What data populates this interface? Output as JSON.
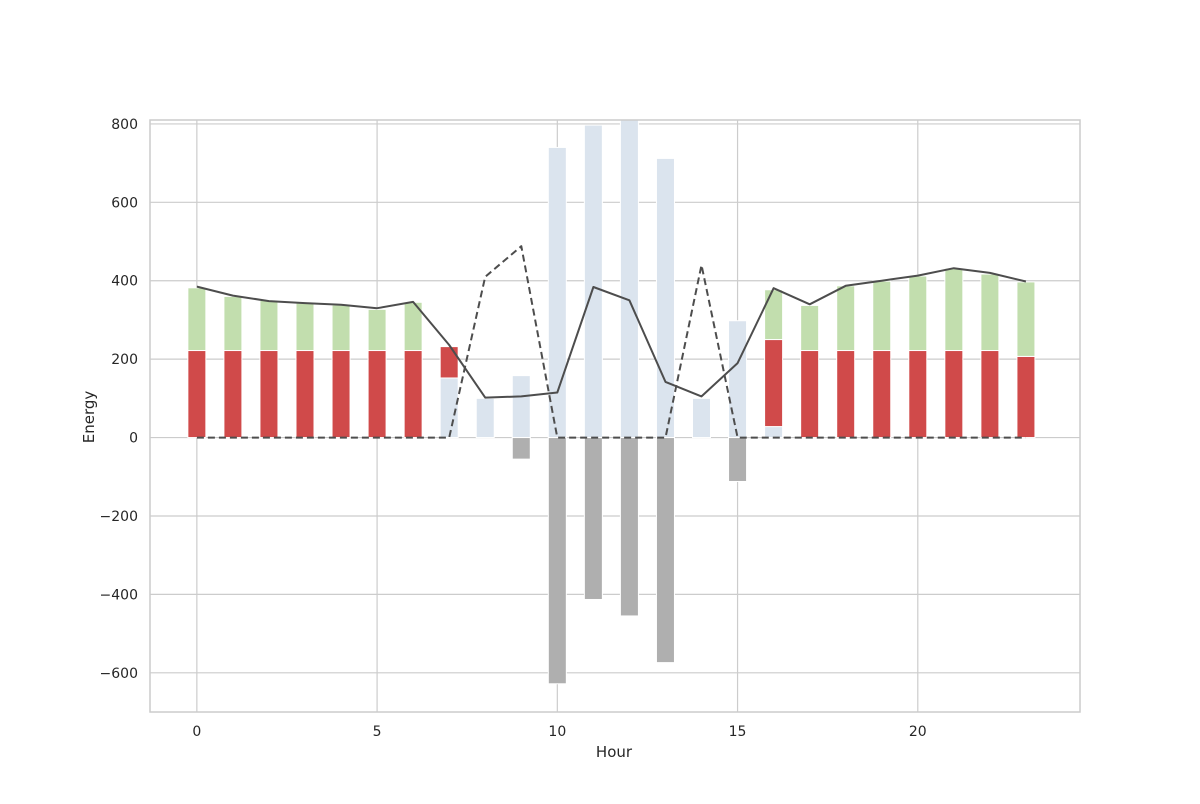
{
  "chart_data": {
    "type": "bar",
    "xlabel": "Hour",
    "ylabel": "Energy",
    "xlim": [
      -1.3,
      24.5
    ],
    "ylim": [
      -700,
      810
    ],
    "xticks": [
      0,
      5,
      10,
      15,
      20
    ],
    "yticks": [
      -600,
      -400,
      -200,
      0,
      200,
      400,
      600,
      800
    ],
    "grid": true,
    "hours": [
      0,
      1,
      2,
      3,
      4,
      5,
      6,
      7,
      8,
      9,
      10,
      11,
      12,
      13,
      14,
      15,
      16,
      17,
      18,
      19,
      20,
      21,
      22,
      23
    ],
    "series": [
      {
        "color": "#dbe4ee",
        "stack": "positive",
        "values": [
          0,
          0,
          0,
          0,
          0,
          0,
          0,
          152,
          100,
          158,
          740,
          797,
          810,
          712,
          100,
          298,
          28,
          0,
          0,
          0,
          0,
          0,
          0,
          0
        ]
      },
      {
        "color": "#d04a4a",
        "stack": "positive",
        "values": [
          222,
          222,
          222,
          222,
          222,
          222,
          222,
          80,
          0,
          0,
          0,
          0,
          0,
          0,
          0,
          0,
          222,
          222,
          222,
          222,
          222,
          222,
          222,
          207
        ]
      },
      {
        "color": "#c2deae",
        "stack": "positive",
        "values": [
          160,
          138,
          128,
          121,
          116,
          105,
          123,
          0,
          0,
          0,
          0,
          0,
          0,
          0,
          0,
          0,
          127,
          115,
          165,
          177,
          190,
          210,
          195,
          190
        ]
      },
      {
        "color": "#afafaf",
        "stack": "negative",
        "values": [
          0,
          0,
          0,
          0,
          0,
          0,
          0,
          0,
          0,
          -55,
          -628,
          -413,
          -455,
          -574,
          0,
          -112,
          0,
          0,
          0,
          0,
          0,
          0,
          0,
          0
        ]
      }
    ],
    "lines": [
      {
        "style": "solid",
        "color": "#4d4d4d",
        "values": [
          385,
          362,
          348,
          343,
          339,
          330,
          346,
          236,
          102,
          105,
          115,
          384,
          350,
          142,
          105,
          190,
          381,
          340,
          387,
          400,
          413,
          432,
          420,
          398
        ]
      },
      {
        "style": "dashed",
        "color": "#4d4d4d",
        "values": [
          0,
          0,
          0,
          0,
          0,
          0,
          0,
          0,
          410,
          488,
          0,
          0,
          0,
          0,
          440,
          0,
          0,
          0,
          0,
          0,
          0,
          0,
          0,
          0
        ]
      }
    ]
  }
}
